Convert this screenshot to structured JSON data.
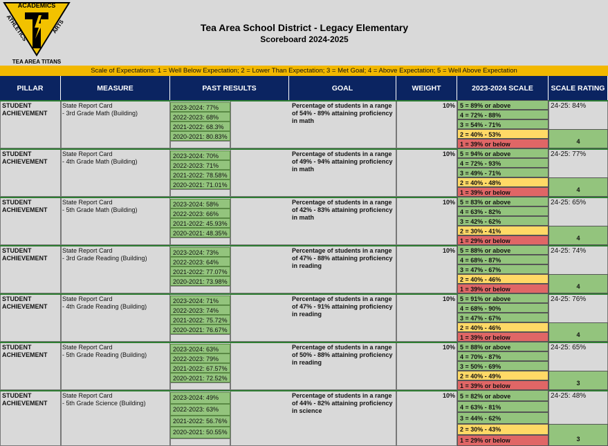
{
  "logo": {
    "top": "ACADEMICS",
    "left": "ATHLETICS",
    "right": "ARTS",
    "bottom": "TEA AREA TITANS"
  },
  "header": {
    "title": "Tea Area School District - Legacy Elementary",
    "subtitle": "Scoreboard  2024-2025"
  },
  "scale_bar": "Scale of Expectations: 1 = Well Below Expectation; 2 = Lower Than Expectation; 3 = Met Goal; 4 = Above Expectation; 5 = Well Above Expectation",
  "table": {
    "headers": [
      "PILLAR",
      "MEASURE",
      "PAST RESULTS",
      "GOAL",
      "WEIGHT",
      "2023-2024 SCALE",
      "SCALE RATING"
    ],
    "rows": [
      {
        "pillar": "STUDENT ACHIEVEMENT",
        "measure": [
          "State Report Card",
          "- 3rd Grade Math (Building)"
        ],
        "past": [
          "2023-2024: 77%",
          "2022-2023: 68%",
          "2021-2022: 68.3%",
          "2020-2021: 80.83%"
        ],
        "goal": "Percentage of students in a range of 54% - 89% attaining proficiency in math",
        "weight": "10%",
        "scale": [
          "5 = 89% or above",
          "4 = 72% - 88%",
          "3 = 54% - 71%",
          "2 = 40% - 53%",
          "1 = 39% or below"
        ],
        "rating_label": "24-25: 84%",
        "rating": "4"
      },
      {
        "pillar": "STUDENT ACHIEVEMENT",
        "measure": [
          "State Report Card",
          "- 4th Grade Math (Building)"
        ],
        "past": [
          "2023-2024: 70%",
          "2022-2023: 71%",
          "2021-2022: 78.58%",
          "2020-2021: 71.01%"
        ],
        "goal": "Percentage of students in a range of 49% - 94% attaining proficiency in math",
        "weight": "10%",
        "scale": [
          "5 = 94% or above",
          "4 = 72% - 93%",
          "3 = 49% - 71%",
          "2 = 40% - 48%",
          "1 = 39% or below"
        ],
        "rating_label": "24-25: 77%",
        "rating": "4"
      },
      {
        "pillar": "STUDENT ACHIEVEMENT",
        "measure": [
          "State Report Card",
          "- 5th Grade Math (Building)"
        ],
        "past": [
          "2023-2024: 58%",
          "2022-2023: 66%",
          "2021-2022: 45.93%",
          "2020-2021: 48.35%"
        ],
        "goal": "Percentage of students in a range of 42% - 83% attaining proficiency in math",
        "weight": "10%",
        "scale": [
          "5 = 83% or above",
          "4 = 63% - 82%",
          "3 = 42% - 62%",
          "2 = 30% - 41%",
          "1 = 29% or below"
        ],
        "rating_label": "24-25: 65%",
        "rating": "4"
      },
      {
        "pillar": "STUDENT ACHIEVEMENT",
        "measure": [
          "State Report Card",
          "- 3rd Grade Reading (Building)"
        ],
        "past": [
          "2023-2024: 73%",
          "2022-2023: 64%",
          "2021-2022: 77.07%",
          "2020-2021: 73.98%"
        ],
        "goal": "Percentage of students in a range of 47% - 88% attaining proficiency in reading",
        "weight": "10%",
        "scale": [
          "5 = 88% or above",
          "4 = 68% - 87%",
          "3 = 47% - 67%",
          "2 = 40% - 46%",
          "1 = 39% or below"
        ],
        "rating_label": "24-25: 74%",
        "rating": "4"
      },
      {
        "pillar": "STUDENT ACHIEVEMENT",
        "measure": [
          "State Report Card",
          "- 4th Grade Reading (Building)"
        ],
        "past": [
          "2023-2024: 71%",
          "2022-2023: 74%",
          "2021-2022: 75.72%",
          "2020-2021: 76.67%"
        ],
        "goal": "Percentage of students in a range of 47% - 91% attaining proficiency in reading",
        "weight": "10%",
        "scale": [
          "5 = 91% or above",
          "4 = 68% - 90%",
          "3 = 47% - 67%",
          "2 = 40% - 46%",
          "1 = 39% or below"
        ],
        "rating_label": "24-25: 76%",
        "rating": "4"
      },
      {
        "pillar": "STUDENT ACHIEVEMENT",
        "measure": [
          "State Report Card",
          "- 5th Grade Reading (Building)"
        ],
        "past": [
          "2023-2024: 63%",
          "2022-2023: 79%",
          "2021-2022: 67.57%",
          "2020-2021: 72.52%"
        ],
        "goal": "Percentage of students in a range of 50% - 88% attaining proficiency in reading",
        "weight": "10%",
        "scale": [
          "5 = 88% or above",
          "4 = 70% - 87%",
          "3 = 50% - 69%",
          "2 = 40% - 49%",
          "1 = 39% or below"
        ],
        "rating_label": "24-25: 65%",
        "rating": "3"
      },
      {
        "pillar": "STUDENT ACHIEVEMENT",
        "measure": [
          "State Report Card",
          "- 5th Grade Science (Building)"
        ],
        "past": [
          "2023-2024: 49%",
          "2022-2023: 63%",
          "2021-2022: 56.76%",
          "2020-2021: 50.55%"
        ],
        "goal": "Percentage of students in a range of 44% - 82% attaining proficiency in science",
        "weight": "10%",
        "scale": [
          "5 = 82% or above",
          "4 = 63% - 81%",
          "3 = 44% - 62%",
          "2 = 30% - 43%",
          "1 = 29% or below"
        ],
        "rating_label": "24-25: 48%",
        "rating": "3"
      }
    ]
  }
}
